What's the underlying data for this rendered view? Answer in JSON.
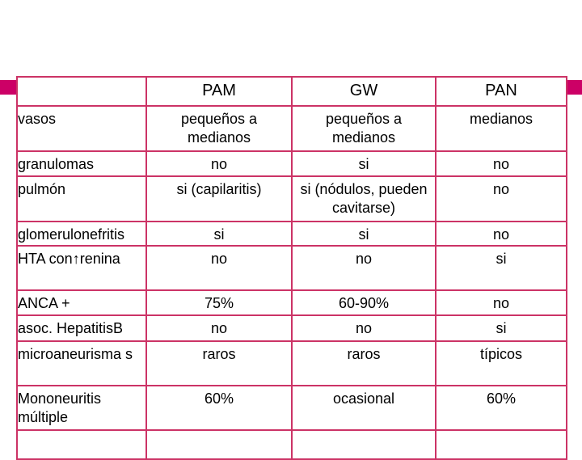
{
  "header": {
    "col0": "",
    "col1": "PAM",
    "col2": "GW",
    "col3": "PAN"
  },
  "rows": [
    {
      "label": "vasos",
      "pam": "pequeños a medianos",
      "gw": "pequeños a medianos",
      "pan": "medianos"
    },
    {
      "label": "granulomas",
      "pam": "no",
      "gw": "si",
      "pan": "no"
    },
    {
      "label": "pulmón",
      "pam": "si (capilaritis)",
      "gw": "si (nódulos, pueden cavitarse)",
      "pan": "no"
    },
    {
      "label": "glomerulonefritis",
      "pam": "si",
      "gw": "si",
      "pan": "no"
    },
    {
      "label": "HTA con↑renina",
      "pam": "no",
      "gw": "no",
      "pan": "si"
    },
    {
      "label": "ANCA +",
      "pam": "75%",
      "gw": "60-90%",
      "pan": "no"
    },
    {
      "label": "asoc. HepatitisB",
      "pam": "no",
      "gw": "no",
      "pan": "si"
    },
    {
      "label": "microaneurisma s",
      "pam": "raros",
      "gw": "raros",
      "pan": "típicos"
    },
    {
      "label": "Mononeuritis múltiple",
      "pam": "60%",
      "gw": "ocasional",
      "pan": "60%"
    }
  ],
  "colors": {
    "border": "#cc3366",
    "accent": "#cc0066"
  }
}
